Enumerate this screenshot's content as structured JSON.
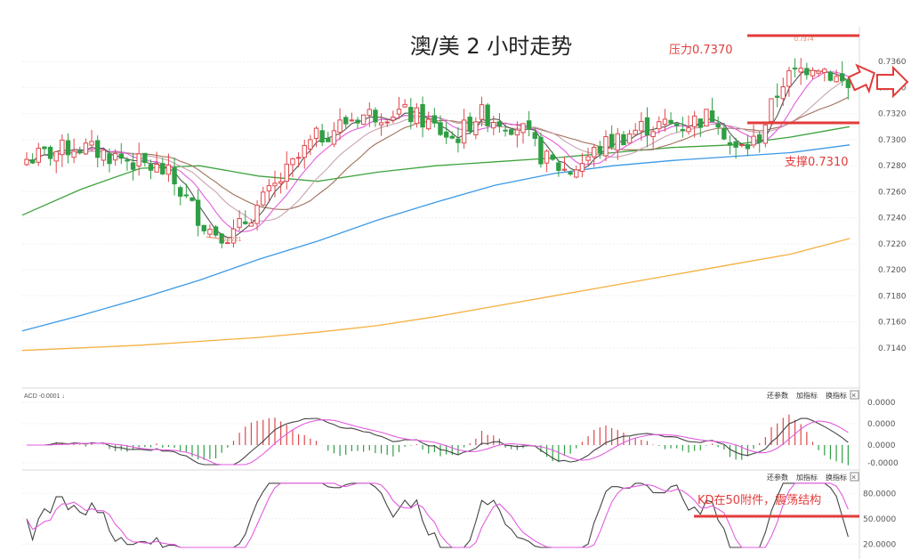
{
  "title": "澳/美 2 小时走势",
  "annotations": {
    "resistance": "压力0.7370",
    "support": "支撑0.7310",
    "kd_note": "KD在50附件，震荡结构",
    "low_marker": "0.7221",
    "high_marker": "0.7374"
  },
  "macd_header": "ACD -0.0001 ↓",
  "panel_buttons": [
    "还参数",
    "加指标",
    "换指标"
  ],
  "close_glyph": "×",
  "colors": {
    "up": "#e0474c",
    "down": "#2f9e44",
    "ma5": "#555555",
    "ma10": "#e35ce0",
    "ma20": "#c9a3b0",
    "ma30": "#a0705a",
    "ma60": "#3fa33f",
    "ma120": "#3b99e6",
    "ma250": "#f5b041",
    "annotation_red": "#e33b3b"
  },
  "chart_data": [
    {
      "type": "candlestick",
      "ylim": [
        0.712,
        0.738
      ],
      "yticks": [
        "0.7360",
        "0.7340",
        "0.7320",
        "0.7300",
        "0.7280",
        "0.7260",
        "0.7240",
        "0.7220",
        "0.7200",
        "0.7180",
        "0.7160",
        "0.7140"
      ],
      "ytick_values": [
        0.736,
        0.734,
        0.732,
        0.73,
        0.728,
        0.726,
        0.724,
        0.722,
        0.72,
        0.718,
        0.716,
        0.714
      ],
      "grid": true,
      "ma120": [
        0.7153,
        0.7165,
        0.7178,
        0.7192,
        0.7208,
        0.7222,
        0.7238,
        0.7252,
        0.7265,
        0.7274,
        0.728,
        0.7284,
        0.7287,
        0.729,
        0.7296
      ],
      "ma250": [
        0.7138,
        0.714,
        0.7142,
        0.7145,
        0.7148,
        0.7152,
        0.7157,
        0.7164,
        0.7172,
        0.718,
        0.7188,
        0.7196,
        0.7204,
        0.7212,
        0.7224
      ],
      "ma60": [
        0.7242,
        0.7262,
        0.7278,
        0.728,
        0.7272,
        0.7268,
        0.7275,
        0.728,
        0.7283,
        0.7286,
        0.729,
        0.7294,
        0.7296,
        0.7302,
        0.731
      ],
      "resistance_level": 0.737,
      "support_level": 0.731
    },
    {
      "type": "line",
      "name": "MACD",
      "yticks": [
        "0.0000",
        "0.0000",
        "0.0000",
        "-0.0000"
      ],
      "ylim": [
        -0.001,
        0.001
      ]
    },
    {
      "type": "line",
      "name": "KD",
      "yticks": [
        "80.0000",
        "50.0000",
        "20.0000"
      ],
      "ytick_values": [
        80,
        50,
        20
      ],
      "ylim": [
        15,
        95
      ],
      "level_line": 50
    }
  ]
}
